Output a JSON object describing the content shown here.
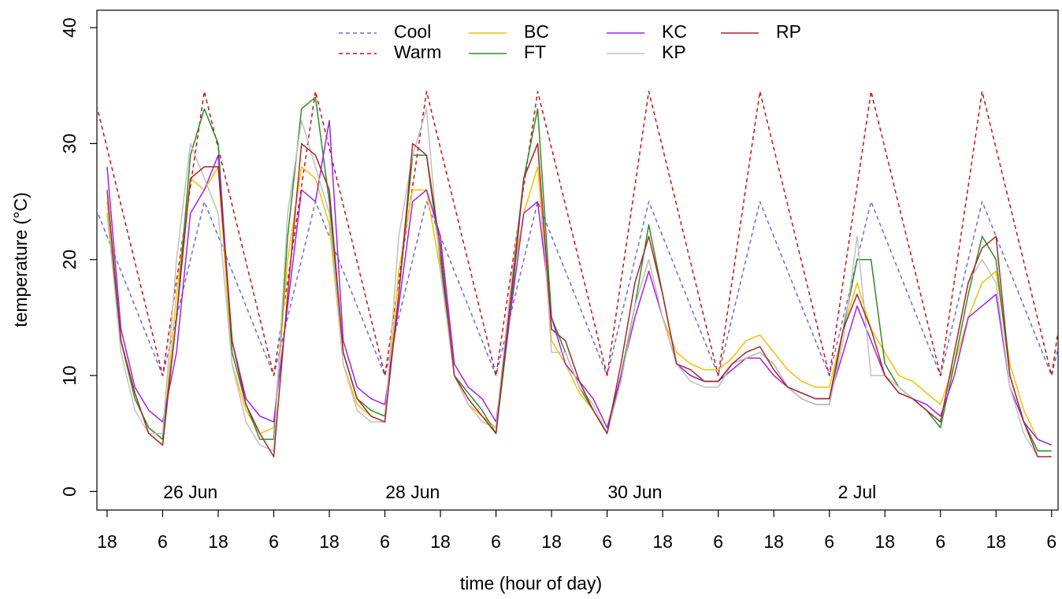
{
  "chart_data": {
    "type": "line",
    "xlabel": "time (hour of day)",
    "ylabel": "temperature (°C)",
    "xlim": [
      15.8,
      223.4
    ],
    "ylim": [
      -1.6,
      41.5
    ],
    "yticks": [
      0,
      10,
      20,
      30,
      40
    ],
    "xticks": [
      {
        "value": 18,
        "label": "18"
      },
      {
        "value": 30,
        "label": "6"
      },
      {
        "value": 42,
        "label": "18"
      },
      {
        "value": 54,
        "label": "6"
      },
      {
        "value": 66,
        "label": "18"
      },
      {
        "value": 78,
        "label": "6"
      },
      {
        "value": 90,
        "label": "18"
      },
      {
        "value": 102,
        "label": "6"
      },
      {
        "value": 114,
        "label": "18"
      },
      {
        "value": 126,
        "label": "6"
      },
      {
        "value": 138,
        "label": "18"
      },
      {
        "value": 150,
        "label": "6"
      },
      {
        "value": 162,
        "label": "18"
      },
      {
        "value": 174,
        "label": "6"
      },
      {
        "value": 186,
        "label": "18"
      },
      {
        "value": 198,
        "label": "6"
      },
      {
        "value": 210,
        "label": "18"
      },
      {
        "value": 222,
        "label": "6"
      }
    ],
    "date_labels": [
      {
        "x": 36,
        "label": "26 Jun"
      },
      {
        "x": 84,
        "label": "28 Jun"
      },
      {
        "x": 132,
        "label": "30 Jun"
      },
      {
        "x": 180,
        "label": "2 Jul"
      }
    ],
    "grid": false,
    "x": [
      18,
      21,
      24,
      27,
      30,
      33,
      36,
      39,
      42,
      45,
      48,
      51,
      54,
      57,
      60,
      63,
      66,
      69,
      72,
      75,
      78,
      81,
      84,
      87,
      90,
      93,
      96,
      99,
      102,
      105,
      108,
      111,
      114,
      117,
      120,
      123,
      126,
      129,
      132,
      135,
      138,
      141,
      144,
      147,
      150,
      153,
      156,
      159,
      162,
      165,
      168,
      171,
      174,
      177,
      180,
      183,
      186,
      189,
      192,
      195,
      198,
      201,
      204,
      207,
      210,
      213,
      216,
      219,
      222
    ],
    "series": [
      {
        "name": "Cool",
        "color": "#6a6ad8",
        "dashed": true,
        "x": [
          15,
          30,
          39,
          54,
          63,
          78,
          87,
          102,
          111,
          126,
          135,
          150,
          159,
          174,
          183,
          198,
          207,
          222,
          231
        ],
        "values": [
          25,
          10,
          25,
          10,
          25,
          10,
          25,
          10,
          25,
          10,
          25,
          10,
          25,
          10,
          25,
          10,
          25,
          10,
          25
        ]
      },
      {
        "name": "Warm",
        "color": "#cc1111",
        "dashed": true,
        "x": [
          15,
          30,
          39,
          54,
          63,
          78,
          87,
          102,
          111,
          126,
          135,
          150,
          159,
          174,
          183,
          198,
          207,
          222,
          231
        ],
        "values": [
          34.5,
          10,
          34.5,
          10,
          34.5,
          10,
          34.5,
          10,
          34.5,
          10,
          34.5,
          10,
          34.5,
          10,
          34.5,
          10,
          34.5,
          10,
          34.5
        ]
      },
      {
        "name": "BC",
        "color": "#f2c200",
        "values": [
          25,
          13,
          8,
          5.5,
          4.5,
          17,
          27,
          26,
          28,
          11,
          7,
          5,
          5.5,
          20,
          28,
          27,
          23,
          11,
          7.5,
          6.5,
          6,
          19,
          26,
          26,
          19,
          10,
          7.5,
          6.5,
          5.5,
          17,
          24,
          28,
          13,
          11,
          8.5,
          7,
          5,
          10,
          16,
          20,
          15,
          12,
          11,
          10.5,
          10.5,
          11.5,
          13,
          13.5,
          12,
          10.5,
          9.5,
          9,
          9,
          14,
          18,
          14,
          12,
          10,
          9.5,
          8.5,
          7.5,
          11,
          15,
          18,
          19,
          11,
          7,
          4.5,
          4
        ]
      },
      {
        "name": "FT",
        "color": "#2e8b2e",
        "values": [
          24,
          13,
          8,
          5.5,
          4.5,
          15,
          29,
          33,
          30,
          12,
          7.5,
          4.5,
          4.5,
          22,
          33,
          34,
          25,
          12,
          8,
          7,
          6.5,
          17,
          29,
          29,
          20,
          10,
          8.5,
          7,
          5,
          15,
          27,
          33,
          15,
          12,
          9,
          7,
          5,
          10,
          16,
          23,
          17,
          11,
          10,
          9.5,
          9.5,
          11,
          11.5,
          12,
          11,
          9,
          8,
          7.5,
          7.5,
          14,
          20,
          20,
          11,
          9,
          8,
          7,
          5.5,
          11,
          17,
          22,
          20,
          10,
          6,
          3.5,
          3.5
        ]
      },
      {
        "name": "KC",
        "color": "#a020f0",
        "values": [
          28,
          14,
          9,
          7,
          6,
          12,
          24,
          26,
          29,
          13,
          8,
          6.5,
          6,
          16,
          26,
          25,
          32,
          13,
          9,
          8,
          7.5,
          16,
          25,
          26,
          22,
          11,
          9,
          8,
          6,
          15,
          24,
          25,
          15,
          11,
          9.5,
          8,
          5.5,
          10,
          15,
          19,
          15,
          11,
          10,
          9.5,
          9.5,
          10.5,
          11.5,
          11.5,
          10,
          9,
          8.5,
          8,
          8,
          12,
          16,
          13,
          10,
          8.5,
          8,
          7.5,
          6.5,
          10,
          15,
          16,
          17,
          9,
          6,
          4.5,
          4
        ]
      },
      {
        "name": "KP",
        "color": "#c0c0c0",
        "values": [
          24,
          12,
          7,
          5,
          5,
          20,
          30,
          27,
          24,
          11,
          6,
          4,
          3.5,
          24,
          32,
          28,
          24,
          11,
          7,
          6,
          6,
          22,
          29,
          33,
          19,
          10,
          7.5,
          6,
          5.5,
          17,
          27,
          30,
          12,
          12,
          9,
          7.5,
          5,
          9.5,
          16,
          20,
          15,
          11,
          9.5,
          9,
          9,
          11,
          11.5,
          12,
          11,
          9,
          8,
          7.5,
          7.5,
          13,
          22,
          10,
          10,
          9,
          8,
          7,
          6,
          12,
          18,
          20,
          18,
          9,
          5,
          3,
          3
        ]
      },
      {
        "name": "RP",
        "color": "#a52a2a",
        "values": [
          26,
          13,
          8.5,
          5,
          4,
          15,
          27,
          28,
          28,
          13,
          7.5,
          5,
          3,
          17,
          30,
          29,
          26,
          12,
          8,
          6.5,
          6,
          17,
          30,
          29,
          21,
          10,
          8,
          6.5,
          5,
          16,
          27,
          30,
          14,
          13,
          9.5,
          7,
          5,
          11,
          18,
          22,
          17,
          11,
          10.5,
          9.5,
          9.5,
          11,
          12,
          12.5,
          10.5,
          9,
          8.5,
          8,
          8,
          14,
          17,
          14,
          10,
          8.5,
          8,
          7,
          6,
          12,
          18,
          21,
          22,
          10,
          6,
          3,
          3
        ]
      }
    ]
  }
}
